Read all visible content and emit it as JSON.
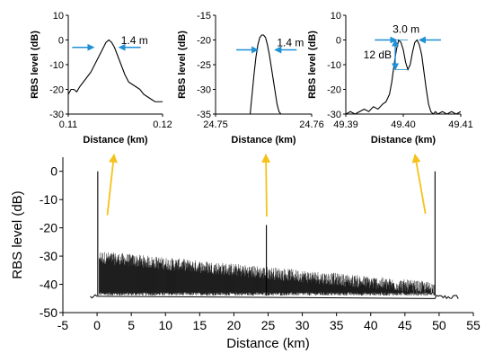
{
  "chart_data": [
    {
      "id": "inset1",
      "type": "line",
      "xlabel": "Distance (km)",
      "ylabel": "RBS level (dB)",
      "xlim": [
        0.11,
        0.12
      ],
      "ylim": [
        -30,
        10
      ],
      "xticks": [
        "0.11",
        "0.12"
      ],
      "yticks": [
        "10",
        "0",
        "-10",
        "-20",
        "-30"
      ],
      "x": [
        0.11,
        0.1103,
        0.1106,
        0.1109,
        0.1112,
        0.1116,
        0.112,
        0.1124,
        0.1128,
        0.1132,
        0.1136,
        0.114,
        0.1143,
        0.1146,
        0.1149,
        0.1152,
        0.1156,
        0.116,
        0.1164,
        0.1168,
        0.1172,
        0.1176,
        0.118,
        0.1184,
        0.1188,
        0.1192,
        0.1196,
        0.12
      ],
      "y": [
        -22,
        -20,
        -20,
        -21,
        -19,
        -17,
        -15,
        -13,
        -10,
        -7,
        -4,
        -1,
        0,
        -1,
        -3,
        -6,
        -10,
        -14,
        -17,
        -18,
        -19,
        -20,
        -22,
        -23,
        -24,
        -25,
        -25,
        -25
      ],
      "annotations": [
        {
          "text": "1.4 m",
          "arrow_y": -3,
          "x_from": 0.1127,
          "x_to": 0.1154
        }
      ]
    },
    {
      "id": "inset2",
      "type": "line",
      "xlabel": "Distance (km)",
      "ylabel": "RBS level (dB)",
      "xlim": [
        24.75,
        24.76
      ],
      "ylim": [
        -35,
        -15
      ],
      "xticks": [
        "24.75",
        "24.76"
      ],
      "yticks": [
        "-15",
        "-20",
        "-25",
        "-30",
        "-35"
      ],
      "x": [
        24.7536,
        24.7538,
        24.754,
        24.7542,
        24.7544,
        24.7546,
        24.7548,
        24.755,
        24.7552,
        24.7554,
        24.7556,
        24.7558,
        24.756,
        24.7562,
        24.7564,
        24.7566,
        24.7568
      ],
      "y": [
        -35,
        -31,
        -27,
        -23.5,
        -21,
        -19.5,
        -19,
        -19,
        -19.5,
        -21,
        -23,
        -25.5,
        -28,
        -30.5,
        -33,
        -34.5,
        -35
      ],
      "annotations": [
        {
          "text": "1.4 m",
          "arrow_y": -22,
          "x_from": 24.7544,
          "x_to": 24.7562
        }
      ]
    },
    {
      "id": "inset3",
      "type": "line",
      "xlabel": "Distance (km)",
      "ylabel": "RBS level (dB)",
      "xlim": [
        49.39,
        49.41
      ],
      "ylim": [
        -30,
        10
      ],
      "xticks": [
        "49.39",
        "49.40",
        "49.41"
      ],
      "yticks": [
        "10",
        "0",
        "-10",
        "-20",
        "-30"
      ],
      "x": [
        49.39,
        49.3908,
        49.3916,
        49.3924,
        49.3932,
        49.394,
        49.3948,
        49.3956,
        49.3964,
        49.397,
        49.3976,
        49.398,
        49.3984,
        49.3988,
        49.3992,
        49.3996,
        49.4,
        49.4004,
        49.4008,
        49.4012,
        49.4016,
        49.402,
        49.4024,
        49.4028,
        49.4032,
        49.4036,
        49.404,
        49.4044,
        49.4048,
        49.4052,
        49.4056,
        49.406,
        49.4068,
        49.4076,
        49.4084,
        49.4092,
        49.41
      ],
      "y": [
        -30,
        -29,
        -30,
        -29,
        -28,
        -29,
        -27,
        -28,
        -26,
        -25,
        -22,
        -17,
        -10,
        -4,
        0,
        -1,
        -4,
        -9,
        -12,
        -10,
        -5,
        -1,
        0,
        -2,
        -6,
        -13,
        -20,
        -26,
        -29,
        -30,
        -29,
        -30,
        -29,
        -30,
        -29,
        -30,
        -29
      ],
      "annotations": [
        {
          "text": "3.0 m",
          "arrow_y": 0,
          "x_from": 49.3988,
          "x_to": 49.4028
        },
        {
          "text": "12 dB",
          "arrow_x": 49.3986,
          "y_from": 0,
          "y_to": -12
        }
      ]
    },
    {
      "id": "main",
      "type": "line",
      "xlabel": "Distance (km)",
      "ylabel": "RBS level (dB)",
      "xlim": [
        -5,
        55
      ],
      "ylim": [
        -50,
        5
      ],
      "xticks": [
        "-5",
        "0",
        "5",
        "10",
        "15",
        "20",
        "25",
        "30",
        "35",
        "40",
        "45",
        "50",
        "55"
      ],
      "yticks": [
        "0",
        "-10",
        "-20",
        "-30",
        "-40",
        "-50"
      ],
      "series": [
        {
          "noise_floor": {
            "x_start": -1,
            "x_end": 52.8,
            "level": -44.5
          },
          "noise_band": {
            "x_start": 0.3,
            "x_end": 49.3,
            "top_start": -30,
            "top_end": -41,
            "bottom_start": -44,
            "bottom_end": -44
          },
          "spikes": [
            {
              "x": 0.1,
              "peak": 0
            },
            {
              "x": 24.75,
              "peak": -19
            },
            {
              "x": 49.4,
              "peak": 0
            }
          ]
        }
      ],
      "pointers": [
        {
          "from_x": 1.5,
          "from_y": -15.5,
          "to_inset": "inset1"
        },
        {
          "from_x": 24.8,
          "from_y": -16,
          "to_inset": "inset2"
        },
        {
          "from_x": 48.0,
          "from_y": -15,
          "to_inset": "inset3"
        }
      ],
      "pointer_color": "#F5C21B",
      "annotation_arrow_color": "#1E90D6"
    }
  ]
}
